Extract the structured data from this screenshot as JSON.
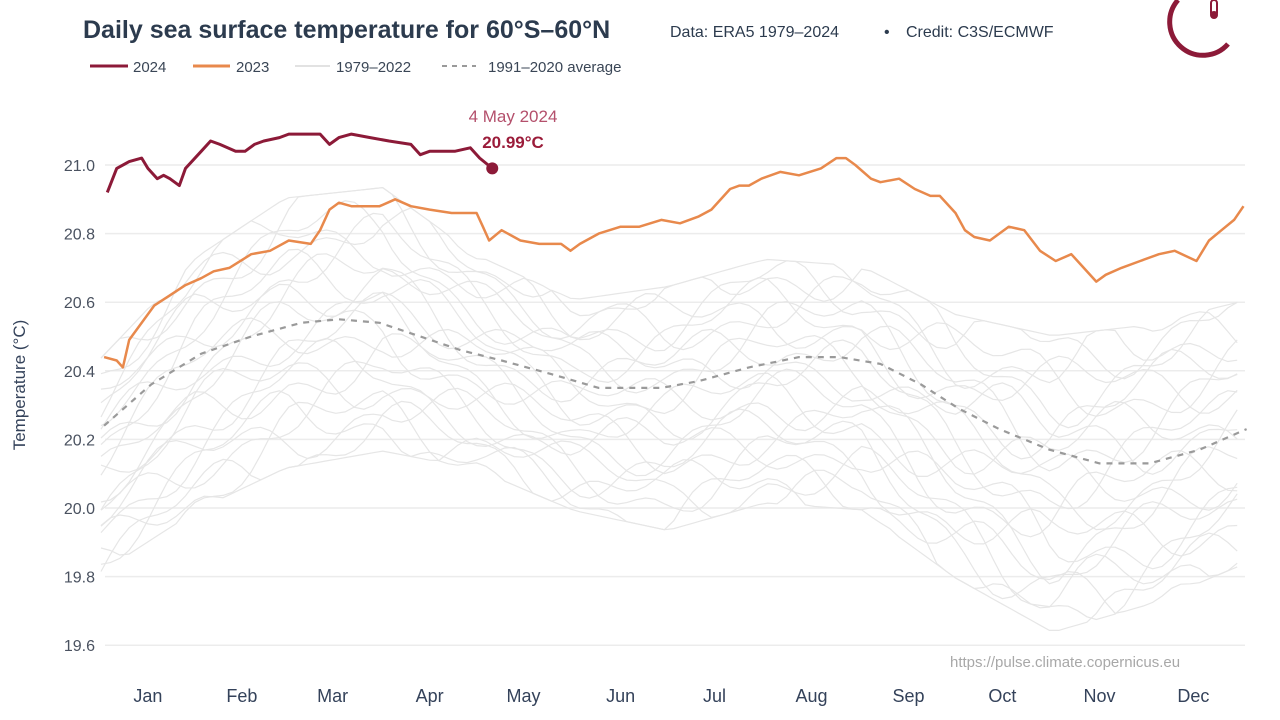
{
  "chart_data": {
    "type": "line",
    "title": "Daily sea surface temperature for 60°S–60°N",
    "subtitle_source": "Data: ERA5 1979–2024",
    "subtitle_separator": "•",
    "subtitle_credit": "Credit: C3S/ECMWF",
    "ylabel": "Temperature (°C)",
    "xlabel": "",
    "ylim": [
      19.55,
      21.15
    ],
    "xlim_day_of_year": [
      0,
      366
    ],
    "y_ticks": [
      "19.6",
      "19.8",
      "20.0",
      "20.2",
      "20.4",
      "20.6",
      "20.8",
      "21.0"
    ],
    "y_tick_values": [
      19.6,
      19.8,
      20.0,
      20.2,
      20.4,
      20.6,
      20.8,
      21.0
    ],
    "x_ticks": [
      "Jan",
      "Feb",
      "Mar",
      "Apr",
      "May",
      "Jun",
      "Jul",
      "Aug",
      "Sep",
      "Oct",
      "Nov",
      "Dec"
    ],
    "x_tick_days": [
      15,
      45,
      74,
      105,
      135,
      166,
      196,
      227,
      258,
      288,
      319,
      349
    ],
    "grid": "horizontal",
    "legend_placement": "top-left",
    "legend": [
      "2024",
      "2023",
      "1979–2022",
      "1991–2020 average"
    ],
    "annotation": {
      "date": "4 May 2024",
      "value": "20.99°C",
      "day": 125,
      "temp": 20.99
    },
    "source_url": "https://pulse.climate.copernicus.eu",
    "colors": {
      "y2024": "#8c1a38",
      "y2023": "#e8894c",
      "historic": "#e4e4e4",
      "average": "#9a9a9a"
    },
    "series": [
      {
        "name": "2024",
        "x": [
          2,
          5,
          9,
          13,
          15,
          18,
          20,
          22,
          25,
          27,
          32,
          35,
          38,
          43,
          46,
          49,
          52,
          57,
          60,
          64,
          67,
          70,
          73,
          76,
          80,
          86,
          92,
          99,
          102,
          105,
          113,
          118,
          121,
          125
        ],
        "y": [
          20.92,
          20.99,
          21.01,
          21.02,
          20.99,
          20.96,
          20.97,
          20.96,
          20.94,
          20.99,
          21.04,
          21.07,
          21.06,
          21.04,
          21.04,
          21.06,
          21.07,
          21.08,
          21.09,
          21.09,
          21.09,
          21.09,
          21.06,
          21.08,
          21.09,
          21.08,
          21.07,
          21.06,
          21.03,
          21.04,
          21.04,
          21.05,
          21.02,
          20.99
        ]
      },
      {
        "name": "2023",
        "x": [
          1,
          5,
          7,
          9,
          13,
          17,
          22,
          27,
          32,
          36,
          41,
          48,
          54,
          60,
          67,
          70,
          73,
          76,
          80,
          86,
          89,
          94,
          99,
          105,
          112,
          120,
          122,
          124,
          128,
          134,
          140,
          147,
          150,
          153,
          159,
          166,
          172,
          179,
          185,
          191,
          195,
          201,
          204,
          207,
          211,
          217,
          223,
          230,
          235,
          238,
          241,
          246,
          249,
          255,
          260,
          265,
          268,
          273,
          276,
          279,
          284,
          290,
          295,
          300,
          305,
          310,
          313,
          318,
          321,
          326,
          332,
          338,
          343,
          350,
          354,
          358,
          362,
          365
        ],
        "y": [
          20.44,
          20.43,
          20.41,
          20.49,
          20.54,
          20.59,
          20.62,
          20.65,
          20.67,
          20.69,
          20.7,
          20.74,
          20.75,
          20.78,
          20.77,
          20.81,
          20.87,
          20.89,
          20.88,
          20.88,
          20.88,
          20.9,
          20.88,
          20.87,
          20.86,
          20.86,
          20.82,
          20.78,
          20.81,
          20.78,
          20.77,
          20.77,
          20.75,
          20.77,
          20.8,
          20.82,
          20.82,
          20.84,
          20.83,
          20.85,
          20.87,
          20.93,
          20.94,
          20.94,
          20.96,
          20.98,
          20.97,
          20.99,
          21.02,
          21.02,
          21.0,
          20.96,
          20.95,
          20.96,
          20.93,
          20.91,
          20.91,
          20.86,
          20.81,
          20.79,
          20.78,
          20.82,
          20.81,
          20.75,
          20.72,
          20.74,
          20.71,
          20.66,
          20.68,
          20.7,
          20.72,
          20.74,
          20.75,
          20.72,
          20.78,
          20.81,
          20.84,
          20.88
        ]
      },
      {
        "name": "1991–2020 average",
        "x": [
          1,
          16,
          32,
          48,
          64,
          76,
          89,
          102,
          115,
          128,
          144,
          159,
          179,
          191,
          207,
          223,
          236,
          249,
          262,
          274,
          287,
          303,
          319,
          335,
          351,
          366
        ],
        "y": [
          20.24,
          20.36,
          20.45,
          20.5,
          20.54,
          20.55,
          20.54,
          20.5,
          20.46,
          20.43,
          20.39,
          20.35,
          20.35,
          20.37,
          20.41,
          20.44,
          20.44,
          20.42,
          20.36,
          20.29,
          20.23,
          20.17,
          20.13,
          20.13,
          20.17,
          20.23
        ]
      },
      {
        "name": "1979–2022",
        "type": "range",
        "x": [
          0,
          31,
          59,
          90,
          120,
          151,
          181,
          212,
          243,
          273,
          304,
          334,
          365
        ],
        "upper": [
          20.45,
          20.75,
          20.92,
          20.95,
          20.75,
          20.62,
          20.66,
          20.74,
          20.72,
          20.58,
          20.52,
          20.55,
          20.62
        ],
        "lower": [
          19.8,
          19.98,
          20.1,
          20.15,
          20.1,
          19.98,
          19.92,
          20.0,
          19.98,
          19.78,
          19.62,
          19.7,
          19.82
        ]
      }
    ]
  }
}
